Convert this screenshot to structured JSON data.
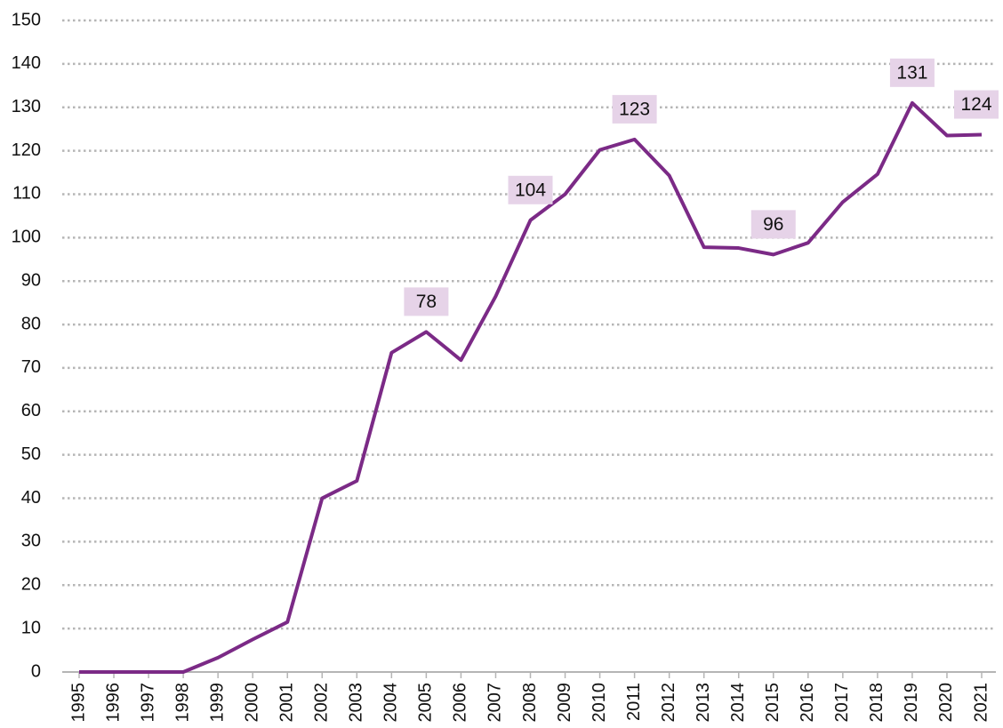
{
  "chart_data": {
    "type": "line",
    "categories": [
      "1995",
      "1996",
      "1997",
      "1998",
      "1999",
      "2000",
      "2001",
      "2002",
      "2003",
      "2004",
      "2005",
      "2006",
      "2007",
      "2008",
      "2009",
      "2010",
      "2011",
      "2012",
      "2013",
      "2014",
      "2015",
      "2016",
      "2017",
      "2018",
      "2019",
      "2020",
      "2021"
    ],
    "values": [
      0,
      0,
      0,
      0,
      3.3,
      7.5,
      11.5,
      40,
      44,
      73.5,
      78.3,
      71.8,
      86.5,
      104,
      110,
      120.2,
      122.6,
      114.3,
      97.8,
      97.6,
      96.1,
      98.8,
      108.2,
      114.6,
      131,
      123.5,
      123.7
    ],
    "value_labels": [
      null,
      null,
      null,
      null,
      null,
      null,
      null,
      null,
      null,
      null,
      "78",
      null,
      null,
      "104",
      null,
      null,
      "123",
      null,
      null,
      null,
      "96",
      null,
      null,
      null,
      "131",
      null,
      "124"
    ],
    "color": "#7b2a86",
    "label_color": "#e6d3e8",
    "ylim": [
      0,
      150
    ],
    "yticks": [
      0,
      10,
      20,
      30,
      40,
      50,
      60,
      70,
      80,
      90,
      100,
      110,
      120,
      130,
      140,
      150
    ],
    "grid": true
  }
}
